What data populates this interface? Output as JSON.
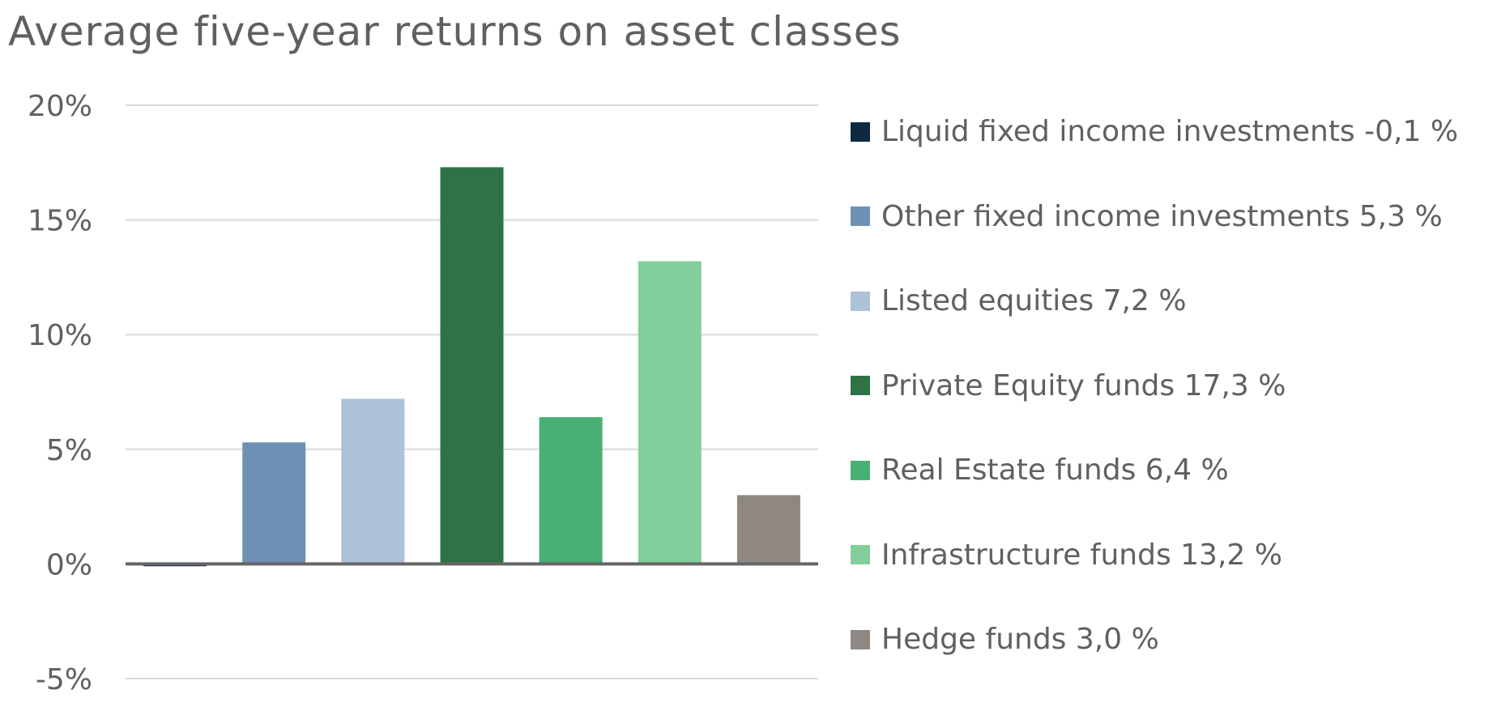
{
  "chart_data": {
    "type": "bar",
    "title": "Average five-year returns on asset classes",
    "categories": [
      "Liquid fixed income investments",
      "Other fixed income investments",
      "Listed equities",
      "Private Equity funds",
      "Real Estate funds",
      "Infrastructure funds",
      "Hedge funds"
    ],
    "values": [
      -0.1,
      5.3,
      7.2,
      17.3,
      6.4,
      13.2,
      3.0
    ],
    "colors": [
      "#0f2a40",
      "#6e90b5",
      "#adc1d8",
      "#2f7246",
      "#48b075",
      "#82cf9b",
      "#8f8882"
    ],
    "legend_labels": [
      "Liquid fixed income investments -0,1 %",
      "Other fixed income investments 5,3 %",
      "Listed equities 7,2 %",
      "Private Equity funds 17,3 %",
      "Real Estate funds 6,4 %",
      "Infrastructure funds 13,2 %",
      "Hedge funds 3,0 %"
    ],
    "ylim": [
      -5,
      20
    ],
    "y_ticks": [
      20,
      15,
      10,
      5,
      0,
      -5
    ],
    "y_tick_labels": [
      "20%",
      "15%",
      "10%",
      "5%",
      "0%",
      "-5%"
    ],
    "grid": true,
    "legend_position": "right",
    "xlabel": "",
    "ylabel": ""
  }
}
